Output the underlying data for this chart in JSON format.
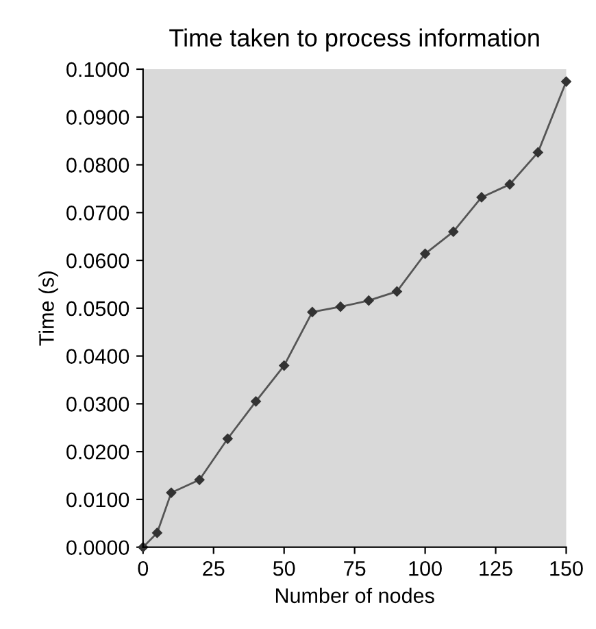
{
  "chart_data": {
    "type": "line",
    "title": "Time taken to process information",
    "xlabel": "Number of nodes",
    "ylabel": "Time (s)",
    "x": [
      0,
      5,
      10,
      20,
      30,
      40,
      50,
      60,
      70,
      80,
      90,
      100,
      110,
      120,
      130,
      140,
      150
    ],
    "series": [
      {
        "color": "#555555",
        "values": [
          0.0,
          0.003,
          0.0114,
          0.0141,
          0.0227,
          0.0305,
          0.038,
          0.0492,
          0.0503,
          0.0516,
          0.0535,
          0.0614,
          0.066,
          0.0732,
          0.0759,
          0.0826,
          0.0974
        ]
      }
    ],
    "xlim": [
      0,
      150
    ],
    "xticks": [
      0,
      25,
      50,
      75,
      100,
      125,
      150
    ],
    "ylim": [
      0,
      0.1
    ],
    "yticks": [
      {
        "value": 0,
        "label": "0.0000"
      },
      {
        "value": 0.01,
        "label": "0.0100"
      },
      {
        "value": 0.02,
        "label": "0.0200"
      },
      {
        "value": 0.03,
        "label": "0.0300"
      },
      {
        "value": 0.04,
        "label": "0.0400"
      },
      {
        "value": 0.05,
        "label": "0.0500"
      },
      {
        "value": 0.06,
        "label": "0.0600"
      },
      {
        "value": 0.07,
        "label": "0.0700"
      },
      {
        "value": 0.08,
        "label": "0.0800"
      },
      {
        "value": 0.09,
        "label": "0.0900"
      },
      {
        "value": 0.1,
        "label": "0.1000"
      }
    ],
    "grid": false,
    "legend": false,
    "marker": "diamond",
    "line_style": "solid"
  }
}
